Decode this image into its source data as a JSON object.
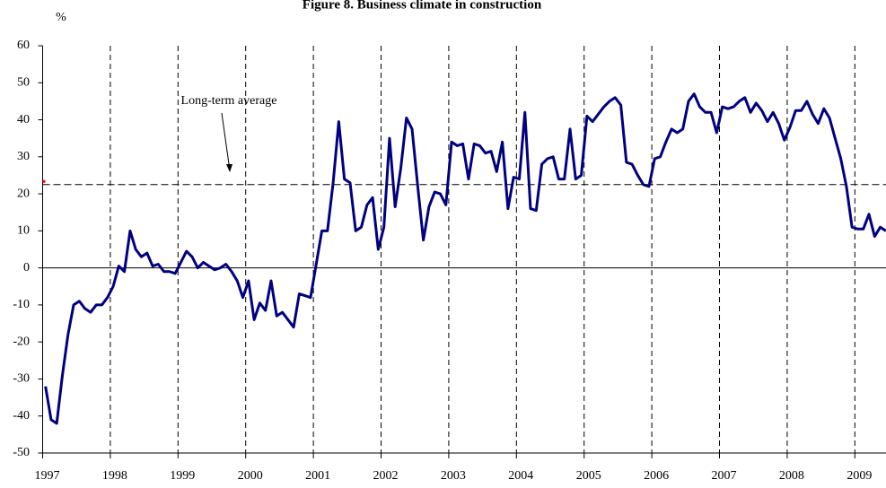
{
  "chart_data": {
    "type": "line",
    "title": "Figure 8. Business climate in construction",
    "y_label": "%",
    "xlim": [
      1997,
      2009.46
    ],
    "xticks": [
      1997,
      1998,
      1999,
      2000,
      2001,
      2002,
      2003,
      2004,
      2005,
      2006,
      2007,
      2008,
      2009
    ],
    "ylim": [
      -50,
      60
    ],
    "yticks": [
      -50,
      -40,
      -30,
      -20,
      -10,
      0,
      10,
      20,
      30,
      40,
      50,
      60
    ],
    "vertical_grid": true,
    "reference_line": {
      "value": 22.5,
      "label": "Long-term average",
      "color": "#000000",
      "marker_color": "#ff0000"
    },
    "x": [
      1997.042,
      1997.125,
      1997.208,
      1997.292,
      1997.375,
      1997.458,
      1997.542,
      1997.625,
      1997.708,
      1997.792,
      1997.875,
      1997.958,
      1998.042,
      1998.125,
      1998.208,
      1998.292,
      1998.375,
      1998.458,
      1998.542,
      1998.625,
      1998.708,
      1998.792,
      1998.875,
      1998.958,
      1999.042,
      1999.125,
      1999.208,
      1999.292,
      1999.375,
      1999.458,
      1999.542,
      1999.625,
      1999.708,
      1999.792,
      1999.875,
      1999.958,
      2000.042,
      2000.125,
      2000.208,
      2000.292,
      2000.375,
      2000.458,
      2000.542,
      2000.625,
      2000.708,
      2000.792,
      2000.875,
      2000.958,
      2001.042,
      2001.125,
      2001.208,
      2001.292,
      2001.375,
      2001.458,
      2001.542,
      2001.625,
      2001.708,
      2001.792,
      2001.875,
      2001.958,
      2002.042,
      2002.125,
      2002.208,
      2002.292,
      2002.375,
      2002.458,
      2002.542,
      2002.625,
      2002.708,
      2002.792,
      2002.875,
      2002.958,
      2003.042,
      2003.125,
      2003.208,
      2003.292,
      2003.375,
      2003.458,
      2003.542,
      2003.625,
      2003.708,
      2003.792,
      2003.875,
      2003.958,
      2004.042,
      2004.125,
      2004.208,
      2004.292,
      2004.375,
      2004.458,
      2004.542,
      2004.625,
      2004.708,
      2004.792,
      2004.875,
      2004.958,
      2005.042,
      2005.125,
      2005.208,
      2005.292,
      2005.375,
      2005.458,
      2005.542,
      2005.625,
      2005.708,
      2005.792,
      2005.875,
      2005.958,
      2006.042,
      2006.125,
      2006.208,
      2006.292,
      2006.375,
      2006.458,
      2006.542,
      2006.625,
      2006.708,
      2006.792,
      2006.875,
      2006.958,
      2007.042,
      2007.125,
      2007.208,
      2007.292,
      2007.375,
      2007.458,
      2007.542,
      2007.625,
      2007.708,
      2007.792,
      2007.875,
      2007.958,
      2008.042,
      2008.125,
      2008.208,
      2008.292,
      2008.375,
      2008.458,
      2008.542,
      2008.625,
      2008.708,
      2008.792,
      2008.875,
      2008.958,
      2009.042,
      2009.125,
      2009.208,
      2009.292,
      2009.375,
      2009.458
    ],
    "series": [
      {
        "color": "#000080",
        "values": [
          -32,
          -41,
          -42,
          -29,
          -18,
          -10,
          -9,
          -11,
          -12,
          -10,
          -10,
          -8,
          -5,
          0.5,
          -1,
          10,
          5,
          3,
          4,
          0.5,
          1,
          -1,
          -1,
          -1.5,
          1.5,
          4.5,
          3,
          0,
          1.5,
          0.5,
          -0.5,
          0,
          1,
          -1,
          -3.5,
          -8,
          -3.5,
          -14,
          -9.5,
          -11.5,
          -3.5,
          -13,
          -12,
          -14,
          -16,
          -7,
          -7.5,
          -8,
          1,
          10,
          10,
          23,
          39.5,
          24,
          23,
          10,
          11,
          17,
          19,
          5,
          11,
          35,
          16.5,
          27,
          40.5,
          37.5,
          22,
          7.5,
          16.5,
          20.5,
          20,
          17,
          34,
          33,
          33.5,
          24,
          33.5,
          33,
          31,
          31.5,
          26,
          34,
          16,
          24.5,
          24,
          42,
          16,
          15.5,
          28,
          29.5,
          30,
          24,
          24,
          37.5,
          24,
          25,
          41,
          39.5,
          41.5,
          43.5,
          45,
          46,
          44,
          28.5,
          28,
          25,
          22.5,
          22,
          29.5,
          30,
          34,
          37.5,
          36.5,
          37.5,
          45,
          47,
          43.5,
          42,
          42,
          36.5,
          43.5,
          43,
          43.5,
          45,
          46,
          42,
          44.5,
          42.5,
          39.5,
          42,
          39,
          34.5,
          38,
          42.5,
          42.5,
          45,
          41.5,
          39,
          43,
          40.5,
          35,
          29.5,
          22,
          11,
          10.5,
          10.5,
          14.5,
          8.5,
          11,
          10
        ]
      }
    ]
  }
}
